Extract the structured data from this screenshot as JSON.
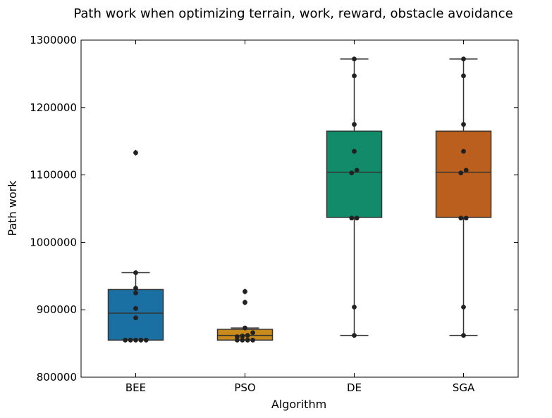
{
  "chart_data": {
    "type": "box",
    "title": "Path work when optimizing terrain, work, reward, obstacle avoidance",
    "xlabel": "Algorithm",
    "ylabel": "Path work",
    "ylim": [
      800000,
      1300000
    ],
    "yticks": [
      800000,
      900000,
      1000000,
      1100000,
      1200000,
      1300000
    ],
    "categories": [
      "BEE",
      "PSO",
      "DE",
      "SGA"
    ],
    "colors": [
      "#1a6fa3",
      "#c98a1c",
      "#128b6a",
      "#bb5f1e"
    ],
    "boxes": [
      {
        "name": "BEE",
        "whisker_low": 855000,
        "q1": 855000,
        "median": 895000,
        "q3": 930000,
        "whisker_high": 955000,
        "outliers": [
          1133000
        ]
      },
      {
        "name": "PSO",
        "whisker_low": 855000,
        "q1": 855000,
        "median": 862000,
        "q3": 871000,
        "whisker_high": 873000,
        "outliers": [
          911000,
          927000
        ]
      },
      {
        "name": "DE",
        "whisker_low": 862000,
        "q1": 1037000,
        "median": 1104000,
        "q3": 1165000,
        "whisker_high": 1272000,
        "outliers": []
      },
      {
        "name": "SGA",
        "whisker_low": 862000,
        "q1": 1037000,
        "median": 1104000,
        "q3": 1165000,
        "whisker_high": 1272000,
        "outliers": []
      }
    ],
    "points": [
      {
        "category": "BEE",
        "values": [
          855000,
          855000,
          855000,
          855000,
          855000,
          888000,
          902000,
          925000,
          932000,
          955000,
          1133000
        ]
      },
      {
        "category": "PSO",
        "values": [
          855000,
          855000,
          855000,
          855000,
          860000,
          861000,
          862000,
          866000,
          873000,
          911000,
          927000
        ]
      },
      {
        "category": "DE",
        "values": [
          862000,
          904000,
          1036000,
          1036000,
          1103000,
          1107000,
          1135000,
          1175000,
          1247000,
          1272000
        ]
      },
      {
        "category": "SGA",
        "values": [
          862000,
          904000,
          1036000,
          1036000,
          1103000,
          1107000,
          1135000,
          1175000,
          1247000,
          1272000
        ]
      }
    ],
    "grid": false,
    "legend": "none"
  }
}
